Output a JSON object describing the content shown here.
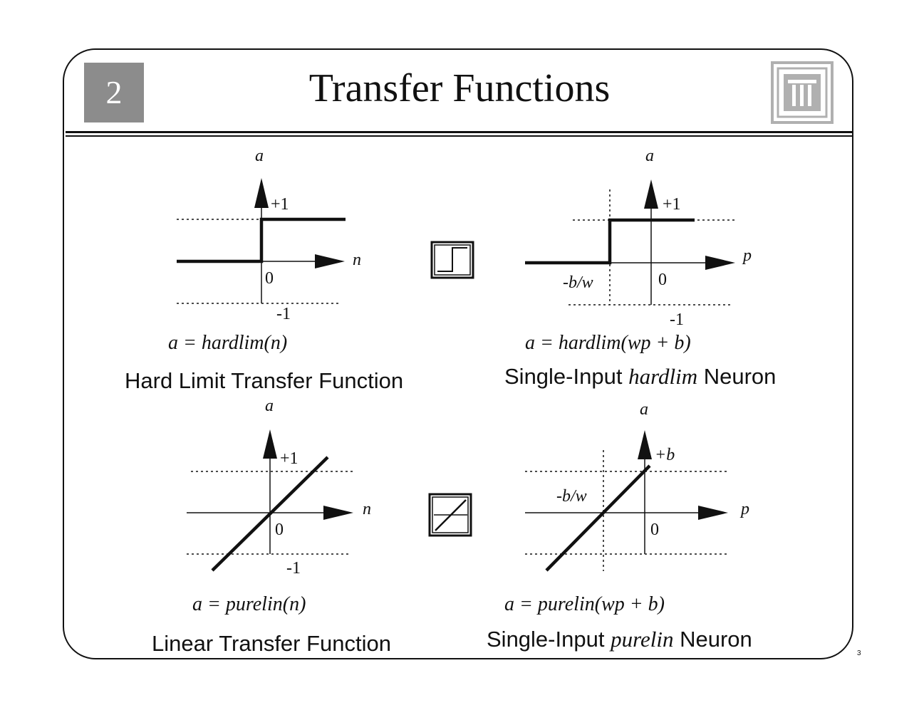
{
  "slide": {
    "chapter_number": "2",
    "title": "Transfer Functions",
    "page_number": "3"
  },
  "graphs": {
    "hardlim": {
      "y_axis": "a",
      "x_axis": "n",
      "plus_one": "+1",
      "minus_one": "-1",
      "zero": "0",
      "equation": "a = hardlim(n)"
    },
    "hardlim_neuron": {
      "y_axis": "a",
      "x_axis": "p",
      "plus_one": "+1",
      "minus_one": "-1",
      "zero": "0",
      "threshold": "-b/w",
      "equation": "a = hardlim(wp + b)"
    },
    "purelin": {
      "y_axis": "a",
      "x_axis": "n",
      "plus_one": "+1",
      "minus_one": "-1",
      "zero": "0",
      "equation": "a = purelin(n)"
    },
    "purelin_neuron": {
      "y_axis": "a",
      "x_axis": "p",
      "plus_b": "+b",
      "zero": "0",
      "threshold": "-b/w",
      "equation": "a = purelin(wp + b)"
    }
  },
  "captions": {
    "hardlim_title": "Hard Limit Transfer Function",
    "hardlim_neuron_prefix": "Single-Input",
    "hardlim_neuron_italic": "hardlim",
    "hardlim_neuron_suffix": "Neuron",
    "purelin_title": "Linear Transfer Function",
    "purelin_neuron_prefix": "Single-Input",
    "purelin_neuron_italic": "purelin",
    "purelin_neuron_suffix": "Neuron"
  },
  "icons": [
    "hardlim-symbol-icon",
    "purelin-symbol-icon",
    "column-logo-icon"
  ]
}
